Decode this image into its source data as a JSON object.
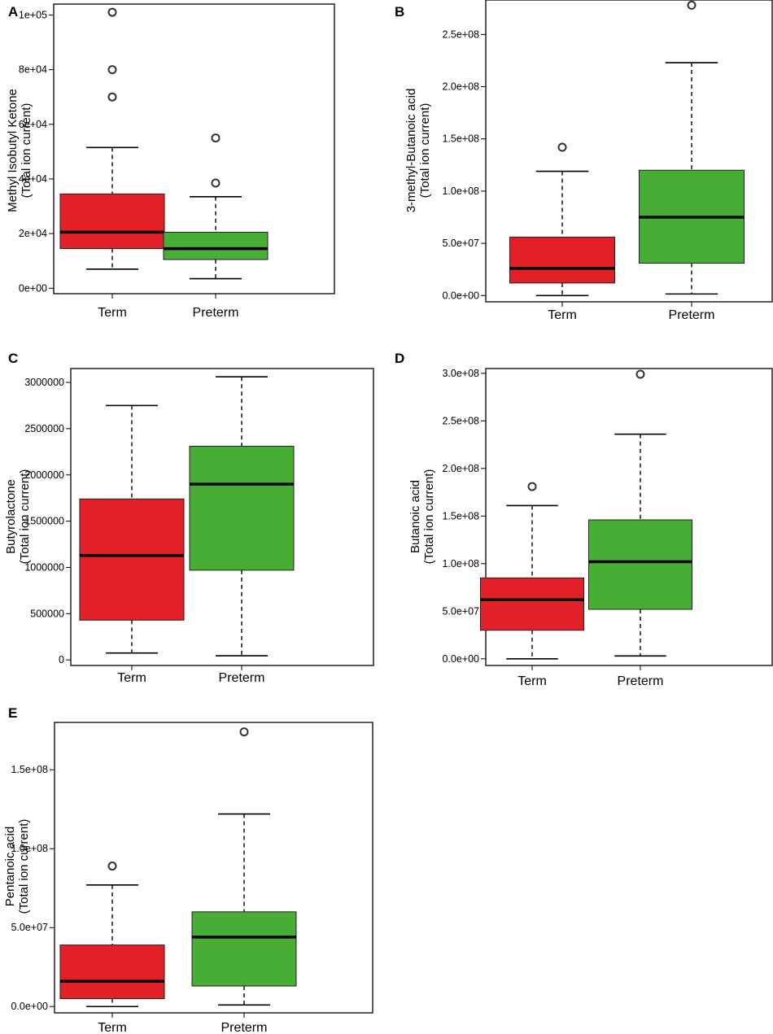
{
  "figure": {
    "colors": {
      "term": "#e32027",
      "preterm": "#47ad35",
      "median": "#000000",
      "frame": "#000000"
    }
  },
  "chart_data": [
    {
      "type": "box",
      "panel": "A",
      "ylabel_line1": "Methyl Isobutyl Ketone",
      "ylabel_line2": "(Total ion current)",
      "categories": [
        "Term",
        "Preterm"
      ],
      "ylim": [
        -2000,
        104000
      ],
      "yticks": [
        0,
        20000,
        40000,
        60000,
        80000,
        100000
      ],
      "ytick_labels": [
        "0e+00",
        "2e+04",
        "4e+04",
        "6e+04",
        "8e+04",
        "1e+05"
      ],
      "series": [
        {
          "name": "Term",
          "color": "#e32027",
          "whisker_low": 7000,
          "q1": 14500,
          "median": 20500,
          "q3": 34500,
          "whisker_high": 51500,
          "outliers": [
            70000,
            80000,
            101000
          ]
        },
        {
          "name": "Preterm",
          "color": "#47ad35",
          "whisker_low": 3500,
          "q1": 10500,
          "median": 14500,
          "q3": 20500,
          "whisker_high": 33500,
          "outliers": [
            38500,
            55000
          ]
        }
      ]
    },
    {
      "type": "box",
      "panel": "B",
      "ylabel_line1": "3-methyl-Butanoic acid",
      "ylabel_line2": "(Total ion current)",
      "categories": [
        "Term",
        "Preterm"
      ],
      "ylim": [
        -6000000,
        283000000
      ],
      "yticks": [
        0,
        50000000,
        100000000,
        150000000,
        200000000,
        250000000
      ],
      "ytick_labels": [
        "0.0e+00",
        "5.0e+07",
        "1.0e+08",
        "1.5e+08",
        "2.0e+08",
        "2.5e+08"
      ],
      "series": [
        {
          "name": "Term",
          "color": "#e32027",
          "whisker_low": 0,
          "q1": 12000000,
          "median": 26000000,
          "q3": 56000000,
          "whisker_high": 119000000,
          "outliers": [
            142000000
          ]
        },
        {
          "name": "Preterm",
          "color": "#47ad35",
          "whisker_low": 1500000,
          "q1": 31000000,
          "median": 75000000,
          "q3": 120000000,
          "whisker_high": 223000000,
          "outliers": [
            278000000
          ]
        }
      ]
    },
    {
      "type": "box",
      "panel": "C",
      "ylabel_line1": "Butyrolactone",
      "ylabel_line2": "(Total ion current)",
      "categories": [
        "Term",
        "Preterm"
      ],
      "ylim": [
        -60000,
        3150000
      ],
      "yticks": [
        0,
        500000,
        1000000,
        1500000,
        2000000,
        2500000,
        3000000
      ],
      "ytick_labels": [
        "0",
        "500000",
        "1000000",
        "1500000",
        "2000000",
        "2500000",
        "3000000"
      ],
      "series": [
        {
          "name": "Term",
          "color": "#e32027",
          "whisker_low": 75000,
          "q1": 430000,
          "median": 1130000,
          "q3": 1740000,
          "whisker_high": 2750000,
          "outliers": []
        },
        {
          "name": "Preterm",
          "color": "#47ad35",
          "whisker_low": 45000,
          "q1": 970000,
          "median": 1900000,
          "q3": 2310000,
          "whisker_high": 3060000,
          "outliers": []
        }
      ]
    },
    {
      "type": "box",
      "panel": "D",
      "ylabel_line1": "Butanoic acid",
      "ylabel_line2": "(Total ion current)",
      "categories": [
        "Term",
        "Preterm"
      ],
      "ylim": [
        -7000000,
        305000000
      ],
      "yticks": [
        0,
        50000000,
        100000000,
        150000000,
        200000000,
        250000000,
        300000000
      ],
      "ytick_labels": [
        "0.0e+00",
        "5.0e+07",
        "1.0e+08",
        "1.5e+08",
        "2.0e+08",
        "2.5e+08",
        "3.0e+08"
      ],
      "series": [
        {
          "name": "Term",
          "color": "#e32027",
          "whisker_low": 0,
          "q1": 30000000,
          "median": 62000000,
          "q3": 85000000,
          "whisker_high": 161000000,
          "outliers": [
            181000000
          ]
        },
        {
          "name": "Preterm",
          "color": "#47ad35",
          "whisker_low": 3000000,
          "q1": 52000000,
          "median": 102000000,
          "q3": 146000000,
          "whisker_high": 236000000,
          "outliers": [
            299000000
          ]
        }
      ]
    },
    {
      "type": "box",
      "panel": "E",
      "ylabel_line1": "Pentanoic acid",
      "ylabel_line2": "(Total ion current)",
      "categories": [
        "Term",
        "Preterm"
      ],
      "ylim": [
        -4000000,
        180000000
      ],
      "yticks": [
        0,
        50000000,
        100000000,
        150000000
      ],
      "ytick_labels": [
        "0.0e+00",
        "5.0e+07",
        "1.0e+08",
        "1.5e+08"
      ],
      "series": [
        {
          "name": "Term",
          "color": "#e32027",
          "whisker_low": 0,
          "q1": 5000000,
          "median": 16000000,
          "q3": 39000000,
          "whisker_high": 77000000,
          "outliers": [
            89000000
          ]
        },
        {
          "name": "Preterm",
          "color": "#47ad35",
          "whisker_low": 1000000,
          "q1": 13000000,
          "median": 44000000,
          "q3": 60000000,
          "whisker_high": 122000000,
          "outliers": [
            174000000
          ]
        }
      ]
    }
  ]
}
